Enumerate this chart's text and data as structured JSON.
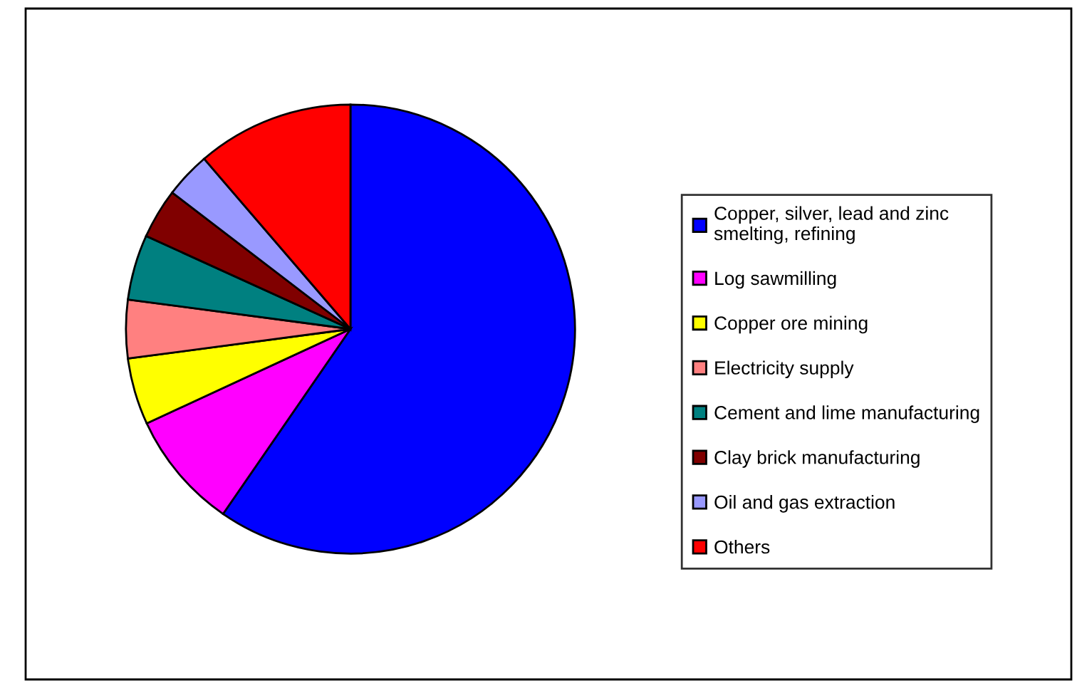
{
  "chart_data": {
    "type": "pie",
    "categories": [
      "Copper, silver, lead and zinc smelting, refining",
      "Log sawmilling",
      "Copper ore mining",
      "Electricity supply",
      "Cement and lime manufacturing",
      "Clay brick manufacturing",
      "Oil and gas extraction",
      "Others"
    ],
    "values": [
      59.6,
      8.5,
      4.8,
      4.2,
      4.7,
      3.6,
      3.3,
      11.3
    ],
    "colors": [
      "#0000ff",
      "#ff00ff",
      "#ffff00",
      "#ff8080",
      "#008080",
      "#800000",
      "#9999ff",
      "#ff0000"
    ],
    "legend": "right"
  }
}
